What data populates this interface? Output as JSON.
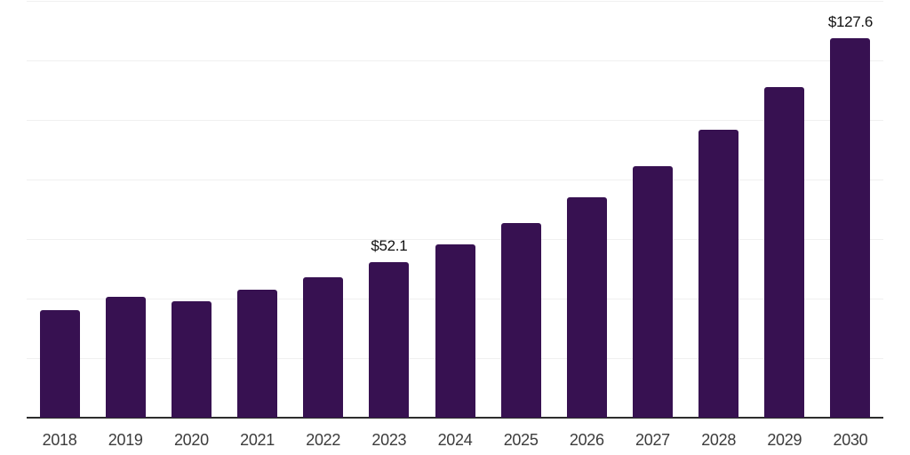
{
  "chart_data": {
    "type": "bar",
    "title": "",
    "categories": [
      "2018",
      "2019",
      "2020",
      "2021",
      "2022",
      "2023",
      "2024",
      "2025",
      "2026",
      "2027",
      "2028",
      "2029",
      "2030"
    ],
    "values": [
      36.1,
      40.5,
      39.1,
      42.9,
      47.3,
      52.1,
      58.2,
      65.5,
      74.0,
      84.5,
      96.7,
      111.0,
      127.6
    ],
    "data_labels": [
      {
        "category": "2023",
        "text": "$52.1"
      },
      {
        "category": "2030",
        "text": "$127.6"
      }
    ],
    "xlabel": "",
    "ylabel": "",
    "ylim": [
      0,
      140
    ],
    "grid_step": 20,
    "grid": true,
    "y_tick_labels_shown": false,
    "legend_position": "none",
    "colors": {
      "bar": "#371151",
      "axis_line": "#2d2d2d",
      "gridline": "#f0f0f0",
      "tick_label": "#3c3c3c",
      "value_label": "#111111",
      "background": "#ffffff"
    }
  }
}
